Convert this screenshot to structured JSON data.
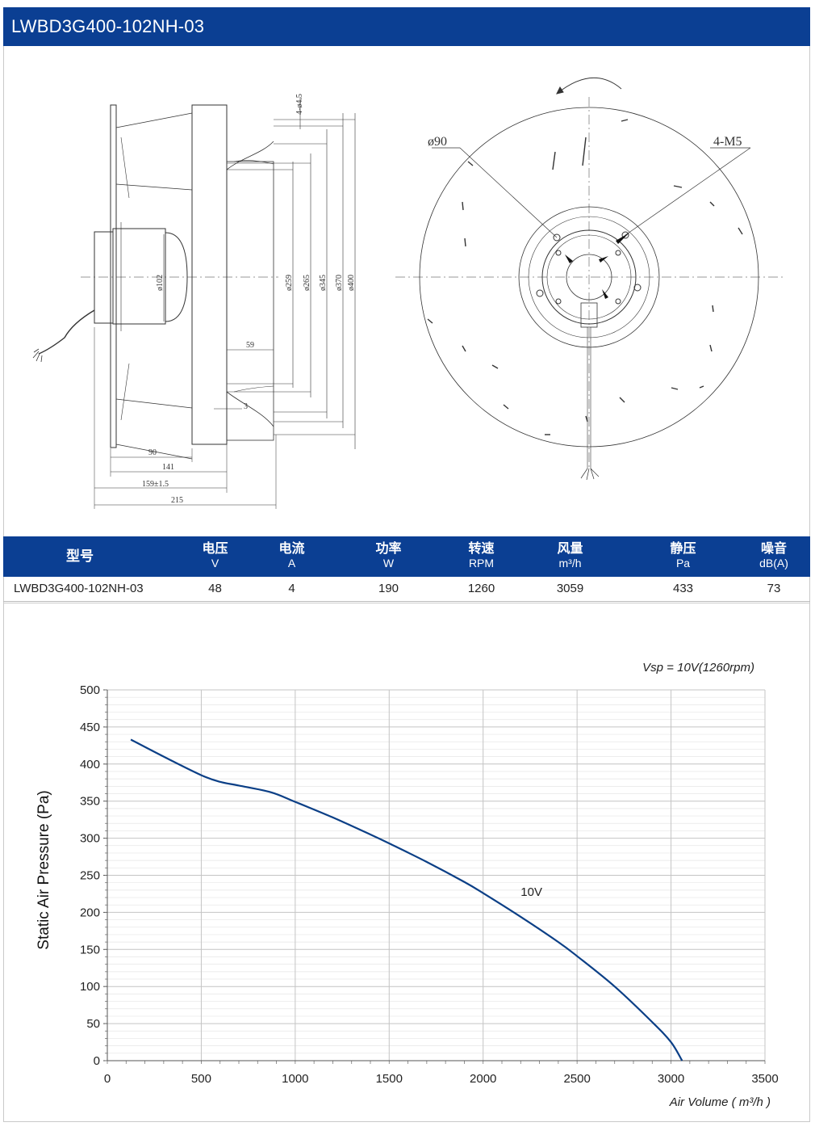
{
  "header": {
    "title": "LWBD3G400-102NH-03"
  },
  "drawing": {
    "side_view": {
      "dims_vertical": [
        "4-ø4.5",
        "ø259",
        "ø265",
        "ø345",
        "ø370",
        "ø400",
        "ø102"
      ],
      "dims_horizontal": [
        "59",
        "3",
        "90",
        "141",
        "159±1.5",
        "215"
      ]
    },
    "front_view": {
      "label_bore": "ø90",
      "label_holes": "4-M5"
    }
  },
  "specs": {
    "columns": [
      {
        "name": "型号",
        "unit": ""
      },
      {
        "name": "电压",
        "unit": "V"
      },
      {
        "name": "电流",
        "unit": "A"
      },
      {
        "name": "功率",
        "unit": "W"
      },
      {
        "name": "转速",
        "unit": "RPM"
      },
      {
        "name": "风量",
        "unit": "m³/h"
      },
      {
        "name": "静压",
        "unit": "Pa"
      },
      {
        "name": "噪音",
        "unit": "dB(A)"
      }
    ],
    "row": [
      "LWBD3G400-102NH-03",
      "48",
      "4",
      "190",
      "1260",
      "3059",
      "433",
      "73"
    ]
  },
  "chart_data": {
    "type": "line",
    "title": "Vsp = 10V(1260rpm)",
    "xlabel": "Air Volume ( m³/h )",
    "ylabel": "Static Air Pressure  (Pa)",
    "xlim": [
      0,
      3500
    ],
    "ylim": [
      0,
      500
    ],
    "xticks": [
      "0",
      "500",
      "1000",
      "1500",
      "2000",
      "2500",
      "3000",
      "3500"
    ],
    "yticks": [
      "0",
      "50",
      "100",
      "150",
      "200",
      "250",
      "300",
      "350",
      "400",
      "450",
      "500"
    ],
    "grid": true,
    "series": [
      {
        "name": "10V",
        "color": "#0b3f86",
        "x": [
          125,
          300,
          500,
          600,
          700,
          870,
          1000,
          1200,
          1400,
          1500,
          1700,
          1900,
          2000,
          2200,
          2400,
          2500,
          2700,
          2900,
          3000,
          3059
        ],
        "y": [
          433,
          410,
          385,
          376,
          371,
          362,
          349,
          328,
          305,
          293,
          268,
          241,
          226,
          194,
          160,
          141,
          100,
          52,
          25,
          0
        ]
      }
    ]
  }
}
